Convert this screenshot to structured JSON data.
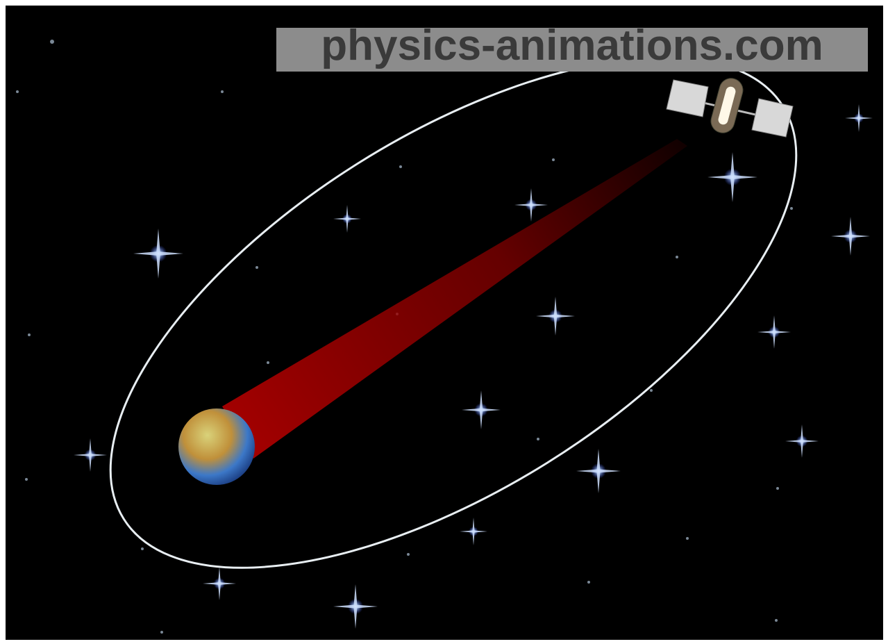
{
  "watermark": "physics-animations.com"
}
